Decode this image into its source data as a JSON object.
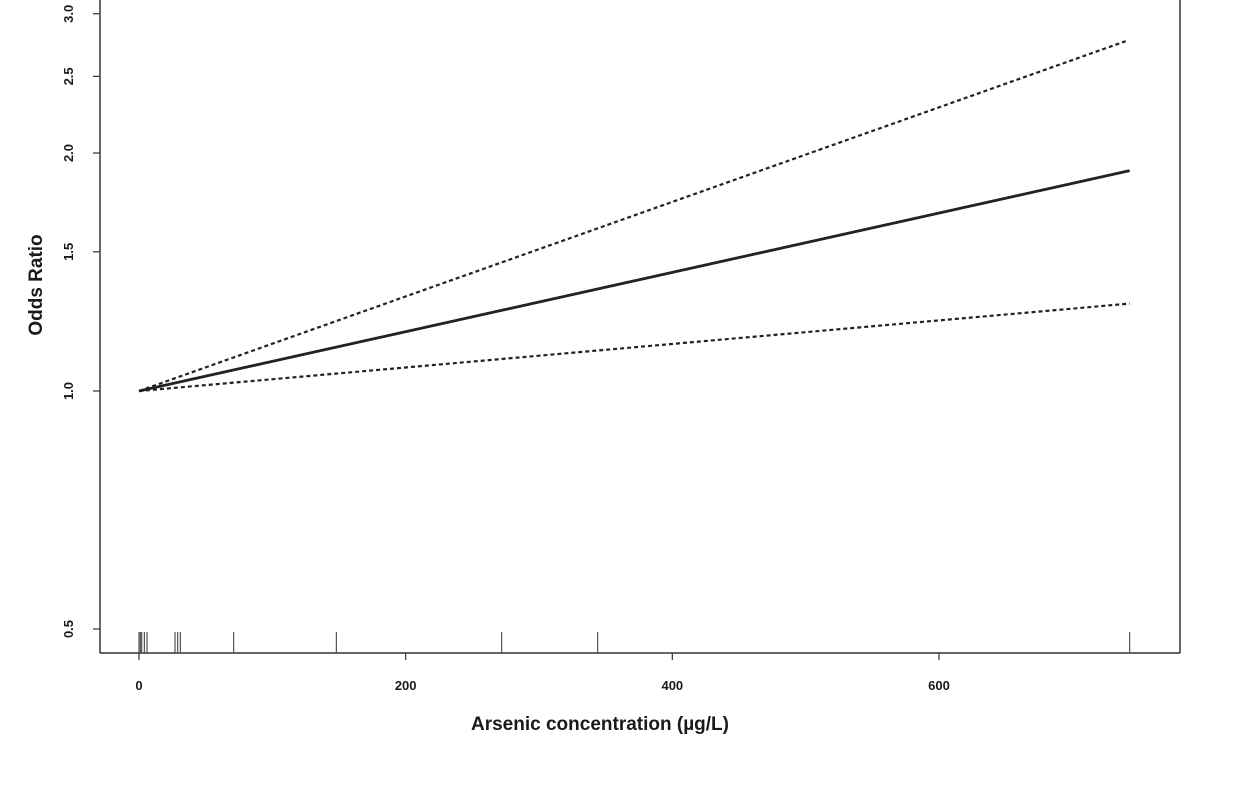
{
  "chart_data": {
    "type": "line",
    "title": "",
    "xlabel": "Arsenic concentration (µg/L)",
    "ylabel": "Odds Ratio",
    "x_ticks": [
      0,
      200,
      400,
      600
    ],
    "y_ticks": [
      0.5,
      1.0,
      1.5,
      2.0,
      2.5,
      3.0
    ],
    "y_tick_labels": [
      "0.5",
      "1.0",
      "1.5",
      "2.0",
      "2.5",
      "3.0"
    ],
    "x_tick_labels": [
      "0",
      "200",
      "400",
      "600"
    ],
    "xlim": [
      -30,
      780
    ],
    "ylim": [
      0.46,
      3.1
    ],
    "y_scale": "log",
    "grid": false,
    "series": [
      {
        "role": "estimate",
        "line_style": "solid",
        "x": [
          0,
          743
        ],
        "y": [
          1.0,
          1.9
        ]
      },
      {
        "role": "upper-ci",
        "line_style": "dotted",
        "x": [
          0,
          740
        ],
        "y": [
          1.0,
          2.77
        ]
      },
      {
        "role": "lower-ci",
        "line_style": "dotted",
        "x": [
          0,
          743
        ],
        "y": [
          1.0,
          1.29
        ]
      }
    ],
    "rug_x": [
      0,
      1,
      2,
      4,
      6,
      27,
      29,
      31,
      71,
      148,
      272,
      344,
      743
    ]
  }
}
